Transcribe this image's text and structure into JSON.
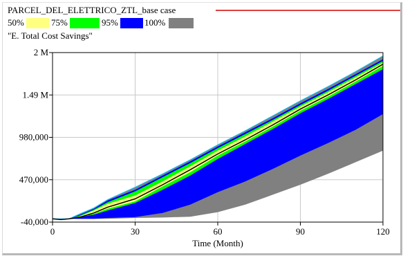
{
  "colors": {
    "band_50": "#ffff80",
    "band_75": "#00ff00",
    "band_95": "#0000ff",
    "band_100": "#808080",
    "mean_line": "#000000",
    "upper_line": "#00c0ff",
    "header_rule": "#d00000",
    "grid": "#c8c8c8",
    "plot_border": "#000000"
  },
  "chart_data": {
    "type": "area",
    "run_name": "PARCEL_DEL_ELETTRICO_ZTL_base case",
    "title": "\"E. Total Cost Savings\"",
    "xlabel": "Time (Month)",
    "ylabel": "",
    "xlim": [
      0,
      120
    ],
    "ylim": [
      -40000,
      2000000
    ],
    "x_ticks": [
      0,
      30,
      60,
      90,
      120
    ],
    "x_tick_labels": [
      "0",
      "30",
      "60",
      "90",
      "120"
    ],
    "y_ticks": [
      -40000,
      470000,
      980000,
      1490000,
      2000000
    ],
    "y_tick_labels": [
      "-40,000",
      "470,000",
      "980,000",
      "1.49 M",
      "2 M"
    ],
    "grid": true,
    "legend": [
      {
        "label": "50%",
        "color_key": "band_50"
      },
      {
        "label": "75%",
        "color_key": "band_75"
      },
      {
        "label": "95%",
        "color_key": "band_95"
      },
      {
        "label": "100%",
        "color_key": "band_100"
      }
    ],
    "legend_position": "top-left",
    "x": [
      0,
      3,
      6,
      10,
      15,
      20,
      30,
      40,
      50,
      60,
      70,
      80,
      90,
      100,
      110,
      120
    ],
    "bands": {
      "p100_low": [
        0,
        0,
        0,
        0,
        0,
        0,
        10000,
        15000,
        25000,
        80000,
        170000,
        290000,
        410000,
        540000,
        680000,
        820000
      ],
      "p95_low": [
        0,
        0,
        0,
        0,
        0,
        10000,
        20000,
        70000,
        170000,
        320000,
        450000,
        600000,
        760000,
        910000,
        1070000,
        1260000
      ],
      "p75_low": [
        0,
        0,
        0,
        20000,
        50000,
        100000,
        190000,
        350000,
        520000,
        720000,
        900000,
        1080000,
        1270000,
        1440000,
        1620000,
        1800000
      ],
      "p50_low": [
        0,
        0,
        0,
        20000,
        60000,
        120000,
        210000,
        390000,
        560000,
        760000,
        930000,
        1110000,
        1300000,
        1470000,
        1650000,
        1840000
      ],
      "p50_high": [
        0,
        0,
        0,
        30000,
        100000,
        180000,
        280000,
        450000,
        630000,
        820000,
        990000,
        1170000,
        1350000,
        1520000,
        1700000,
        1880000
      ],
      "p75_high": [
        0,
        0,
        0,
        40000,
        110000,
        200000,
        330000,
        500000,
        670000,
        850000,
        1020000,
        1190000,
        1370000,
        1540000,
        1720000,
        1900000
      ],
      "p95_high": [
        0,
        0,
        0,
        50000,
        120000,
        220000,
        350000,
        520000,
        690000,
        870000,
        1040000,
        1210000,
        1390000,
        1560000,
        1740000,
        1920000
      ],
      "p100_high": [
        0,
        0,
        0,
        60000,
        130000,
        230000,
        380000,
        540000,
        710000,
        890000,
        1060000,
        1240000,
        1420000,
        1590000,
        1770000,
        1960000
      ],
      "mean": [
        0,
        -10000,
        0,
        20000,
        70000,
        140000,
        240000,
        410000,
        590000,
        780000,
        950000,
        1130000,
        1320000,
        1490000,
        1670000,
        1860000
      ]
    }
  }
}
